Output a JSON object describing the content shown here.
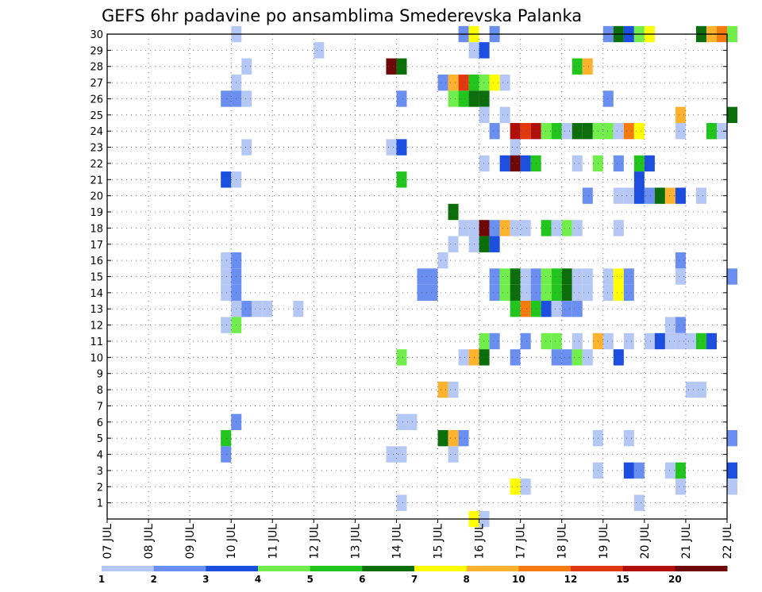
{
  "chart_data": {
    "type": "heatmap",
    "title": "GEFS 6hr padavine po ansamblima Smederevska Palanka",
    "x_tick_labels": [
      "07 JUL",
      "08 JUL",
      "09 JUL",
      "10 JUL",
      "11 JUL",
      "12 JUL",
      "13 JUL",
      "14 JUL",
      "15 JUL",
      "16 JUL",
      "17 JUL",
      "18 JUL",
      "19 JUL",
      "20 JUL",
      "21 JUL",
      "22 JUL"
    ],
    "x_range_days": [
      7,
      22
    ],
    "y_tick_labels": [
      "1",
      "2",
      "3",
      "4",
      "5",
      "6",
      "7",
      "8",
      "9",
      "10",
      "11",
      "12",
      "13",
      "14",
      "15",
      "16",
      "17",
      "18",
      "19",
      "20",
      "21",
      "22",
      "23",
      "24",
      "25",
      "26",
      "27",
      "28",
      "29",
      "30"
    ],
    "y_range_members": [
      0,
      30
    ],
    "grid": "dotted",
    "legend_position": "bottom",
    "color_bins": [
      {
        "label": "1",
        "color": "#b5c8f5"
      },
      {
        "label": "2",
        "color": "#6a8ff0"
      },
      {
        "label": "3",
        "color": "#1c4ee0"
      },
      {
        "label": "4",
        "color": "#72ee4c"
      },
      {
        "label": "5",
        "color": "#22c41e"
      },
      {
        "label": "6",
        "color": "#0b6e0b"
      },
      {
        "label": "7",
        "color": "#ffff00"
      },
      {
        "label": "8",
        "color": "#ffb22e"
      },
      {
        "label": "10",
        "color": "#f57a10"
      },
      {
        "label": "12",
        "color": "#e0380f"
      },
      {
        "label": "15",
        "color": "#b01008"
      },
      {
        "label": "20",
        "color": "#6e0808"
      }
    ],
    "cells": [
      [
        30,
        10.0,
        0
      ],
      [
        30,
        15.5,
        1
      ],
      [
        30,
        15.75,
        6
      ],
      [
        30,
        16.25,
        1
      ],
      [
        30,
        19.0,
        1
      ],
      [
        30,
        19.25,
        5
      ],
      [
        30,
        19.5,
        2
      ],
      [
        30,
        19.75,
        3
      ],
      [
        30,
        20.0,
        6
      ],
      [
        30,
        21.25,
        5
      ],
      [
        30,
        21.5,
        7
      ],
      [
        30,
        21.75,
        8
      ],
      [
        30,
        22.0,
        3
      ],
      [
        29,
        12.0,
        0
      ],
      [
        29,
        15.75,
        0
      ],
      [
        29,
        16.0,
        2
      ],
      [
        28,
        10.25,
        0
      ],
      [
        28,
        13.75,
        11
      ],
      [
        28,
        14.0,
        5
      ],
      [
        28,
        18.25,
        4
      ],
      [
        28,
        18.5,
        7
      ],
      [
        27,
        10.0,
        0
      ],
      [
        27,
        15.0,
        1
      ],
      [
        27,
        15.25,
        7
      ],
      [
        27,
        15.5,
        9
      ],
      [
        27,
        15.75,
        4
      ],
      [
        27,
        16.0,
        3
      ],
      [
        27,
        16.25,
        6
      ],
      [
        27,
        16.5,
        0
      ],
      [
        26,
        9.75,
        1
      ],
      [
        26,
        10.0,
        1
      ],
      [
        26,
        10.25,
        0
      ],
      [
        26,
        14.0,
        1
      ],
      [
        26,
        15.25,
        3
      ],
      [
        26,
        15.5,
        4
      ],
      [
        26,
        15.75,
        5
      ],
      [
        26,
        16.0,
        5
      ],
      [
        26,
        19.0,
        1
      ],
      [
        25,
        16.0,
        0
      ],
      [
        25,
        16.5,
        0
      ],
      [
        25,
        20.75,
        7
      ],
      [
        25,
        22.0,
        5
      ],
      [
        24,
        16.25,
        1
      ],
      [
        24,
        16.75,
        10
      ],
      [
        24,
        17.0,
        9
      ],
      [
        24,
        17.25,
        10
      ],
      [
        24,
        17.5,
        3
      ],
      [
        24,
        17.75,
        4
      ],
      [
        24,
        18.0,
        0
      ],
      [
        24,
        18.25,
        5
      ],
      [
        24,
        18.5,
        5
      ],
      [
        24,
        18.75,
        3
      ],
      [
        24,
        19.0,
        3
      ],
      [
        24,
        19.25,
        0
      ],
      [
        24,
        19.5,
        8
      ],
      [
        24,
        19.75,
        6
      ],
      [
        24,
        20.75,
        0
      ],
      [
        24,
        21.5,
        4
      ],
      [
        24,
        21.75,
        0
      ],
      [
        23,
        10.25,
        0
      ],
      [
        23,
        13.75,
        0
      ],
      [
        23,
        14.0,
        2
      ],
      [
        23,
        16.75,
        0
      ],
      [
        22,
        16.0,
        0
      ],
      [
        22,
        16.5,
        2
      ],
      [
        22,
        16.75,
        11
      ],
      [
        22,
        17.0,
        2
      ],
      [
        22,
        17.25,
        4
      ],
      [
        22,
        18.25,
        0
      ],
      [
        22,
        18.75,
        3
      ],
      [
        22,
        19.25,
        1
      ],
      [
        22,
        19.75,
        4
      ],
      [
        22,
        20.0,
        2
      ],
      [
        21,
        9.75,
        2
      ],
      [
        21,
        10.0,
        0
      ],
      [
        21,
        14.0,
        4
      ],
      [
        21,
        19.75,
        2
      ],
      [
        20,
        19.75,
        2
      ],
      [
        20,
        20.0,
        1
      ],
      [
        20,
        20.25,
        5
      ],
      [
        20,
        20.5,
        7
      ],
      [
        20,
        20.75,
        2
      ],
      [
        20,
        21.25,
        0
      ],
      [
        20,
        18.5,
        1
      ],
      [
        20,
        19.25,
        0
      ],
      [
        20,
        19.5,
        0
      ],
      [
        19,
        15.25,
        5
      ],
      [
        18,
        15.5,
        0
      ],
      [
        18,
        15.75,
        0
      ],
      [
        18,
        16.0,
        11
      ],
      [
        18,
        16.25,
        1
      ],
      [
        18,
        16.5,
        7
      ],
      [
        18,
        16.75,
        0
      ],
      [
        18,
        17.0,
        0
      ],
      [
        18,
        17.5,
        4
      ],
      [
        18,
        17.75,
        0
      ],
      [
        18,
        18.0,
        3
      ],
      [
        18,
        18.25,
        0
      ],
      [
        18,
        19.25,
        0
      ],
      [
        17,
        15.25,
        0
      ],
      [
        17,
        15.75,
        0
      ],
      [
        17,
        16.0,
        5
      ],
      [
        17,
        16.25,
        2
      ],
      [
        16,
        9.75,
        0
      ],
      [
        16,
        10.0,
        1
      ],
      [
        16,
        15.0,
        0
      ],
      [
        16,
        20.75,
        1
      ],
      [
        15,
        9.75,
        0
      ],
      [
        15,
        10.0,
        1
      ],
      [
        15,
        14.5,
        1
      ],
      [
        15,
        14.75,
        1
      ],
      [
        15,
        16.25,
        1
      ],
      [
        15,
        16.5,
        3
      ],
      [
        15,
        16.75,
        5
      ],
      [
        15,
        17.0,
        0
      ],
      [
        15,
        17.25,
        1
      ],
      [
        15,
        17.5,
        3
      ],
      [
        15,
        17.75,
        4
      ],
      [
        15,
        18.0,
        5
      ],
      [
        15,
        18.25,
        0
      ],
      [
        15,
        18.5,
        0
      ],
      [
        15,
        19.0,
        0
      ],
      [
        15,
        19.25,
        6
      ],
      [
        15,
        19.5,
        1
      ],
      [
        15,
        20.75,
        0
      ],
      [
        15,
        22.0,
        1
      ],
      [
        14,
        9.75,
        0
      ],
      [
        14,
        10.0,
        1
      ],
      [
        14,
        14.5,
        1
      ],
      [
        14,
        14.75,
        1
      ],
      [
        14,
        16.25,
        1
      ],
      [
        14,
        16.5,
        3
      ],
      [
        14,
        16.75,
        5
      ],
      [
        14,
        17.0,
        0
      ],
      [
        14,
        17.25,
        1
      ],
      [
        14,
        17.5,
        3
      ],
      [
        14,
        17.75,
        4
      ],
      [
        14,
        18.0,
        5
      ],
      [
        14,
        18.25,
        0
      ],
      [
        14,
        18.5,
        0
      ],
      [
        14,
        19.0,
        0
      ],
      [
        14,
        19.25,
        6
      ],
      [
        14,
        19.5,
        1
      ],
      [
        13,
        10.0,
        0
      ],
      [
        13,
        10.25,
        1
      ],
      [
        13,
        10.5,
        0
      ],
      [
        13,
        10.75,
        0
      ],
      [
        13,
        11.5,
        0
      ],
      [
        13,
        16.75,
        4
      ],
      [
        13,
        17.0,
        8
      ],
      [
        13,
        17.25,
        4
      ],
      [
        13,
        17.5,
        2
      ],
      [
        13,
        17.75,
        0
      ],
      [
        13,
        18.0,
        1
      ],
      [
        13,
        18.25,
        1
      ],
      [
        12,
        9.75,
        0
      ],
      [
        12,
        10.0,
        3
      ],
      [
        12,
        20.5,
        0
      ],
      [
        12,
        20.75,
        1
      ],
      [
        11,
        16.0,
        3
      ],
      [
        11,
        16.25,
        1
      ],
      [
        11,
        17.0,
        1
      ],
      [
        11,
        17.5,
        3
      ],
      [
        11,
        17.75,
        3
      ],
      [
        11,
        18.25,
        0
      ],
      [
        11,
        18.75,
        7
      ],
      [
        11,
        19.0,
        0
      ],
      [
        11,
        19.5,
        0
      ],
      [
        11,
        20.0,
        0
      ],
      [
        11,
        20.25,
        2
      ],
      [
        11,
        20.5,
        0
      ],
      [
        11,
        20.75,
        0
      ],
      [
        11,
        21.0,
        0
      ],
      [
        11,
        21.25,
        4
      ],
      [
        11,
        21.5,
        2
      ],
      [
        10,
        14.0,
        3
      ],
      [
        10,
        15.5,
        0
      ],
      [
        10,
        15.75,
        7
      ],
      [
        10,
        16.0,
        5
      ],
      [
        10,
        16.75,
        1
      ],
      [
        10,
        17.75,
        1
      ],
      [
        10,
        18.0,
        1
      ],
      [
        10,
        18.25,
        3
      ],
      [
        10,
        18.5,
        0
      ],
      [
        10,
        19.25,
        2
      ],
      [
        8,
        15.0,
        7
      ],
      [
        8,
        15.25,
        0
      ],
      [
        8,
        21.0,
        0
      ],
      [
        8,
        21.25,
        0
      ],
      [
        6,
        10.0,
        1
      ],
      [
        6,
        14.0,
        0
      ],
      [
        6,
        14.25,
        0
      ],
      [
        5,
        9.75,
        4
      ],
      [
        5,
        15.0,
        5
      ],
      [
        5,
        15.25,
        7
      ],
      [
        5,
        15.5,
        1
      ],
      [
        5,
        18.75,
        0
      ],
      [
        5,
        19.5,
        0
      ],
      [
        5,
        22.0,
        1
      ],
      [
        4,
        9.75,
        1
      ],
      [
        4,
        13.75,
        0
      ],
      [
        4,
        14.0,
        0
      ],
      [
        4,
        15.25,
        0
      ],
      [
        3,
        18.75,
        0
      ],
      [
        3,
        19.5,
        2
      ],
      [
        3,
        19.75,
        1
      ],
      [
        3,
        20.5,
        0
      ],
      [
        3,
        20.75,
        4
      ],
      [
        3,
        22.0,
        2
      ],
      [
        2,
        16.75,
        6
      ],
      [
        2,
        17.0,
        0
      ],
      [
        2,
        20.75,
        0
      ],
      [
        2,
        22.0,
        0
      ],
      [
        1,
        14.0,
        0
      ],
      [
        1,
        19.75,
        0
      ],
      [
        0,
        15.75,
        6
      ],
      [
        0,
        16.0,
        0
      ]
    ]
  }
}
